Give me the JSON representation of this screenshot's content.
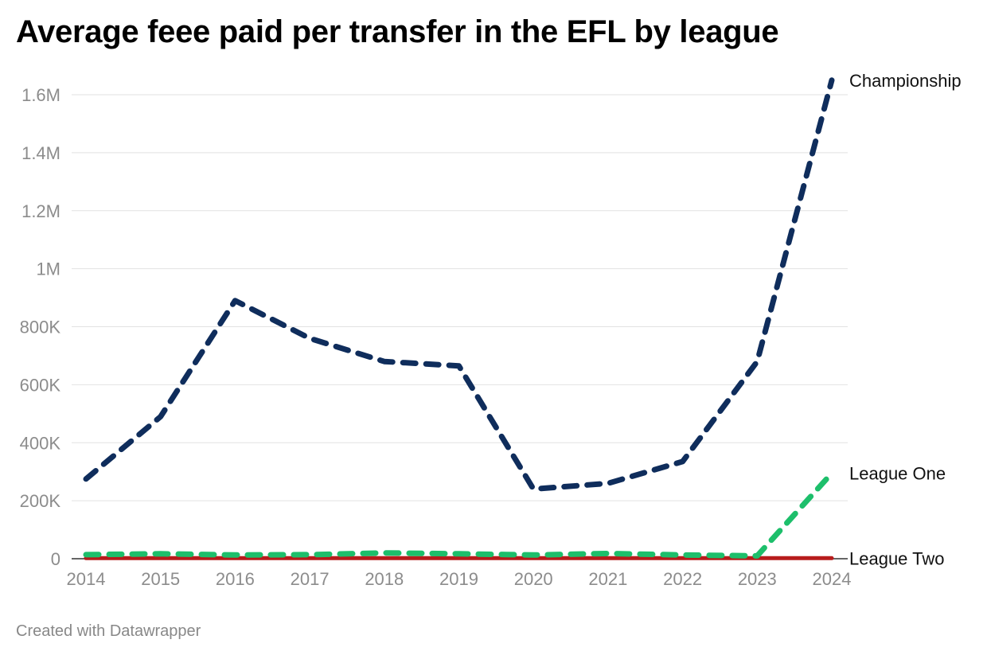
{
  "chart_data": {
    "type": "line",
    "title": "Average feee paid per transfer in the EFL by league",
    "footer": "Created with Datawrapper",
    "x": [
      "2014",
      "2015",
      "2016",
      "2017",
      "2018",
      "2019",
      "2020",
      "2021",
      "2022",
      "2023",
      "2024"
    ],
    "y_ticks": [
      {
        "value": 0,
        "label": "0"
      },
      {
        "value": 200000,
        "label": "200K"
      },
      {
        "value": 400000,
        "label": "400K"
      },
      {
        "value": 600000,
        "label": "600K"
      },
      {
        "value": 800000,
        "label": "800K"
      },
      {
        "value": 1000000,
        "label": "1M"
      },
      {
        "value": 1200000,
        "label": "1.2M"
      },
      {
        "value": 1400000,
        "label": "1.4M"
      },
      {
        "value": 1600000,
        "label": "1.6M"
      }
    ],
    "ylim": [
      0,
      1600000
    ],
    "grid": true,
    "legend": "direct labels at line ends (right)",
    "series": [
      {
        "name": "Championship",
        "color": "#0f2d5c",
        "style": "dashed",
        "values": [
          275000,
          490000,
          890000,
          760000,
          680000,
          665000,
          240000,
          260000,
          335000,
          680000,
          1650000
        ]
      },
      {
        "name": "League One",
        "color": "#1dbf6b",
        "style": "dashed",
        "values": [
          14000,
          17000,
          13000,
          14000,
          20000,
          17000,
          13000,
          18000,
          13000,
          10000,
          295000
        ]
      },
      {
        "name": "League Two",
        "color": "#b71c1c",
        "style": "solid",
        "values": [
          2000,
          2000,
          2000,
          2000,
          2000,
          2000,
          2000,
          2000,
          2000,
          2000,
          2000
        ]
      }
    ]
  }
}
